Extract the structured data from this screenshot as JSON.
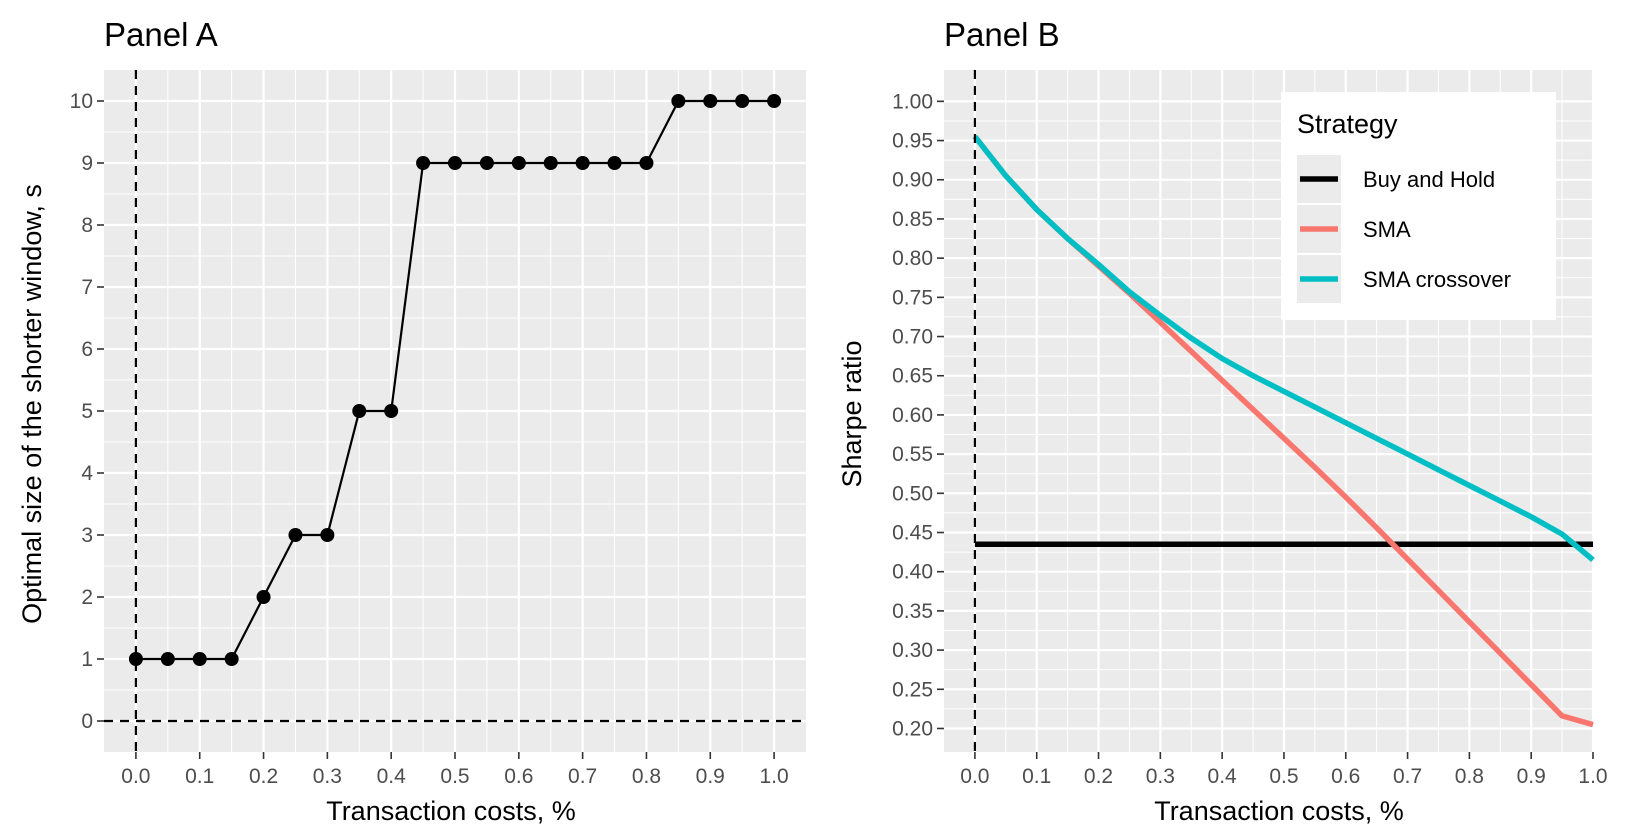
{
  "chart_data": [
    {
      "type": "line",
      "title": "Panel A",
      "xlabel": "Transaction costs, %",
      "ylabel": "Optimal size of the shorter window, s",
      "xlim": [
        -0.05,
        1.05
      ],
      "ylim": [
        -0.5,
        10.5
      ],
      "x_ticks": [
        0.0,
        0.1,
        0.2,
        0.3,
        0.4,
        0.5,
        0.6,
        0.7,
        0.8,
        0.9,
        1.0
      ],
      "x_tick_labels": [
        "0.0",
        "0.1",
        "0.2",
        "0.3",
        "0.4",
        "0.5",
        "0.6",
        "0.7",
        "0.8",
        "0.9",
        "1.0"
      ],
      "y_ticks": [
        0,
        1,
        2,
        3,
        4,
        5,
        6,
        7,
        8,
        9,
        10
      ],
      "y_tick_labels": [
        "0",
        "1",
        "2",
        "3",
        "4",
        "5",
        "6",
        "7",
        "8",
        "9",
        "10"
      ],
      "grid": true,
      "reference_lines": [
        {
          "axis": "x",
          "value": 0
        },
        {
          "axis": "y",
          "value": 0
        }
      ],
      "series": [
        {
          "color": "#000000",
          "markers": true,
          "x": [
            0.0,
            0.05,
            0.1,
            0.15,
            0.2,
            0.25,
            0.3,
            0.35,
            0.4,
            0.45,
            0.5,
            0.55,
            0.6,
            0.65,
            0.7,
            0.75,
            0.8,
            0.85,
            0.9,
            0.95,
            1.0
          ],
          "y": [
            1,
            1,
            1,
            1,
            2,
            3,
            3,
            5,
            5,
            9,
            9,
            9,
            9,
            9,
            9,
            9,
            9,
            10,
            10,
            10,
            10
          ]
        }
      ]
    },
    {
      "type": "line",
      "title": "Panel B",
      "xlabel": "Transaction costs, %",
      "ylabel": "Sharpe ratio",
      "xlim": [
        -0.05,
        1.0
      ],
      "ylim": [
        0.17,
        1.04
      ],
      "x_ticks": [
        0.0,
        0.1,
        0.2,
        0.3,
        0.4,
        0.5,
        0.6,
        0.7,
        0.8,
        0.9,
        1.0
      ],
      "x_tick_labels": [
        "0.0",
        "0.1",
        "0.2",
        "0.3",
        "0.4",
        "0.5",
        "0.6",
        "0.7",
        "0.8",
        "0.9",
        "1.0"
      ],
      "y_ticks": [
        0.2,
        0.25,
        0.3,
        0.35,
        0.4,
        0.45,
        0.5,
        0.55,
        0.6,
        0.65,
        0.7,
        0.75,
        0.8,
        0.85,
        0.9,
        0.95,
        1.0
      ],
      "y_tick_labels": [
        "0.20",
        "0.25",
        "0.30",
        "0.35",
        "0.40",
        "0.45",
        "0.50",
        "0.55",
        "0.60",
        "0.65",
        "0.70",
        "0.75",
        "0.80",
        "0.85",
        "0.90",
        "0.95",
        "1.00"
      ],
      "grid": true,
      "reference_lines": [
        {
          "axis": "x",
          "value": 0
        }
      ],
      "legend": {
        "title": "Strategy",
        "position": "top-right"
      },
      "series": [
        {
          "name": "Buy and Hold",
          "color": "#000000",
          "x": [
            0.0,
            0.2,
            0.4,
            0.6,
            0.8,
            1.0
          ],
          "y": [
            0.435,
            0.435,
            0.435,
            0.435,
            0.435,
            0.435
          ]
        },
        {
          "name": "SMA",
          "color": "#F8766D",
          "x": [
            0.0,
            0.05,
            0.1,
            0.15,
            0.2,
            0.25,
            0.3,
            0.35,
            0.4,
            0.45,
            0.5,
            0.55,
            0.6,
            0.65,
            0.7,
            0.75,
            0.8,
            0.85,
            0.9,
            0.95,
            1.0
          ],
          "y": [
            0.955,
            0.905,
            0.862,
            0.825,
            0.79,
            0.755,
            0.718,
            0.681,
            0.644,
            0.607,
            0.57,
            0.533,
            0.495,
            0.456,
            0.416,
            0.376,
            0.336,
            0.296,
            0.256,
            0.216,
            0.205
          ]
        },
        {
          "name": "SMA crossover",
          "color": "#00BFC4",
          "x": [
            0.0,
            0.05,
            0.1,
            0.15,
            0.2,
            0.25,
            0.3,
            0.35,
            0.4,
            0.45,
            0.5,
            0.55,
            0.6,
            0.65,
            0.7,
            0.75,
            0.8,
            0.85,
            0.9,
            0.95,
            1.0
          ],
          "y": [
            0.955,
            0.905,
            0.862,
            0.825,
            0.792,
            0.757,
            0.727,
            0.698,
            0.672,
            0.65,
            0.63,
            0.61,
            0.59,
            0.57,
            0.55,
            0.53,
            0.51,
            0.49,
            0.47,
            0.448,
            0.415
          ]
        }
      ]
    }
  ]
}
